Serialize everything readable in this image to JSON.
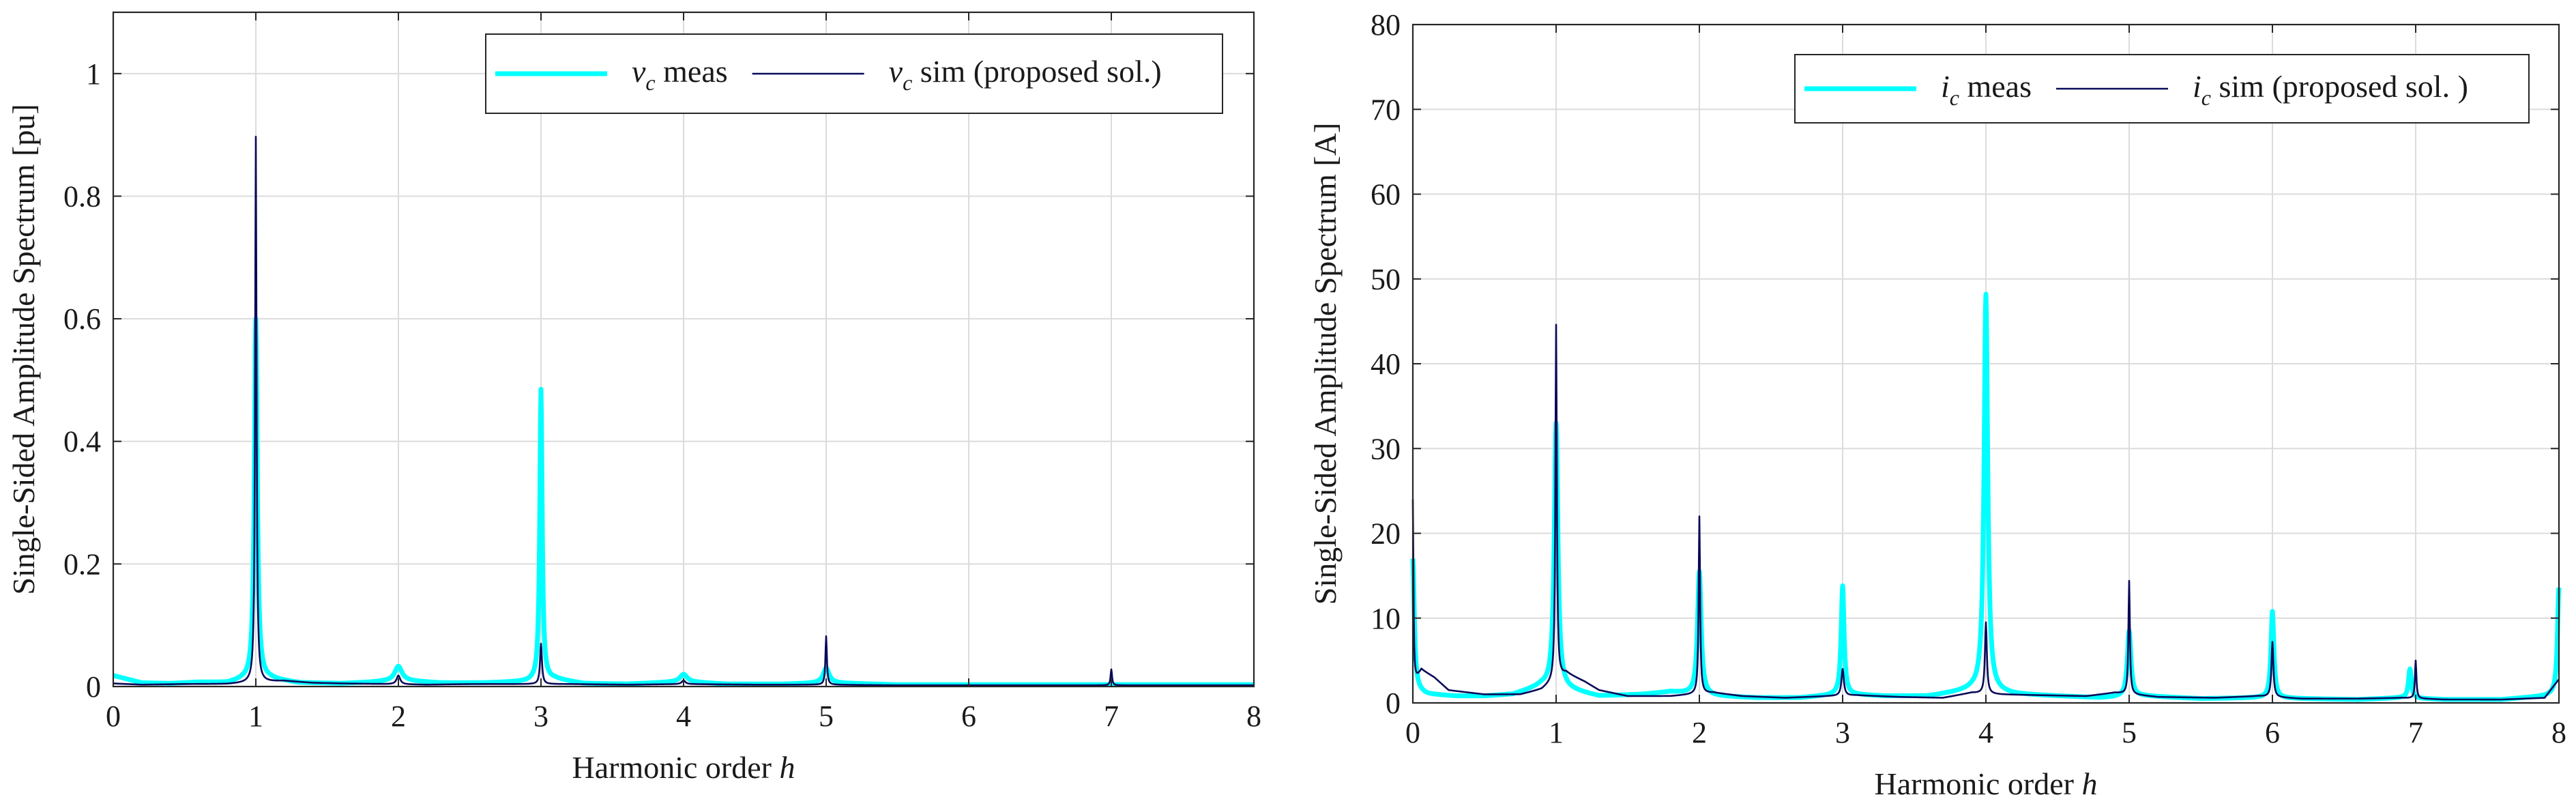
{
  "colors": {
    "meas": "#00FFFF",
    "sim": "#0A0A5A",
    "grid": "#DCDCDC",
    "axis": "#262626"
  },
  "chart_data": [
    {
      "type": "line",
      "title": "",
      "xlabel": "Harmonic order",
      "xlabel_var": "h",
      "ylabel": "Single-Sided Amplitude Spectrum [pu]",
      "xlim": [
        0,
        8
      ],
      "ylim": [
        0,
        1.1
      ],
      "xticks": [
        0,
        1,
        2,
        3,
        4,
        5,
        6,
        7,
        8
      ],
      "xtick_labels": [
        "0",
        "1",
        "2",
        "3",
        "4",
        "5",
        "6",
        "7",
        "8"
      ],
      "yticks": [
        0,
        0.2,
        0.4,
        0.6,
        0.8,
        1
      ],
      "ytick_labels": [
        "0",
        "0.2",
        "0.4",
        "0.6",
        "0.8",
        "1"
      ],
      "grid": true,
      "legend_position": "top-right",
      "legend": [
        {
          "var": "v",
          "sub": "c",
          "text": "meas",
          "series": "meas"
        },
        {
          "var": "v",
          "sub": "c",
          "text": "sim (proposed sol.)",
          "series": "sim"
        }
      ],
      "series": [
        {
          "name": "meas",
          "baseline": [
            [
              0,
              0.018
            ],
            [
              0.1,
              0.012
            ],
            [
              0.2,
              0.006
            ],
            [
              0.4,
              0.005
            ],
            [
              0.6,
              0.007
            ],
            [
              0.8,
              0.006
            ],
            [
              0.9,
              0.01
            ],
            [
              1.1,
              0.012
            ],
            [
              1.3,
              0.006
            ],
            [
              1.6,
              0.005
            ],
            [
              1.8,
              0.007
            ],
            [
              2.0,
              0.01
            ],
            [
              2.3,
              0.006
            ],
            [
              2.6,
              0.006
            ],
            [
              2.9,
              0.008
            ],
            [
              3.1,
              0.012
            ],
            [
              3.3,
              0.005
            ],
            [
              3.6,
              0.004
            ],
            [
              4.0,
              0.008
            ],
            [
              4.3,
              0.004
            ],
            [
              4.7,
              0.004
            ],
            [
              5.0,
              0.006
            ],
            [
              5.5,
              0.003
            ],
            [
              6.0,
              0.003
            ],
            [
              7.0,
              0.003
            ],
            [
              8.0,
              0.003
            ]
          ],
          "peaks": [
            {
              "h": 1.0,
              "value": 0.6,
              "width": 0.012
            },
            {
              "h": 2.0,
              "value": 0.033,
              "width": 0.03
            },
            {
              "h": 3.0,
              "value": 0.485,
              "width": 0.01
            },
            {
              "h": 4.0,
              "value": 0.02,
              "width": 0.03
            },
            {
              "h": 5.0,
              "value": 0.03,
              "width": 0.025
            }
          ]
        },
        {
          "name": "sim",
          "baseline": [
            [
              0,
              0.005
            ],
            [
              0.2,
              0.003
            ],
            [
              0.5,
              0.004
            ],
            [
              0.8,
              0.004
            ],
            [
              1.2,
              0.009
            ],
            [
              1.4,
              0.006
            ],
            [
              1.6,
              0.005
            ],
            [
              2.2,
              0.003
            ],
            [
              2.5,
              0.004
            ],
            [
              2.8,
              0.004
            ],
            [
              3.2,
              0.004
            ],
            [
              3.6,
              0.003
            ],
            [
              4.0,
              0.004
            ],
            [
              4.5,
              0.003
            ],
            [
              5.0,
              0.003
            ],
            [
              5.5,
              0.002
            ],
            [
              6.0,
              0.002
            ],
            [
              7.0,
              0.002
            ],
            [
              8.0,
              0.002
            ]
          ],
          "peaks": [
            {
              "h": 1.0,
              "value": 0.897,
              "width": 0.006
            },
            {
              "h": 2.0,
              "value": 0.018,
              "width": 0.015
            },
            {
              "h": 3.0,
              "value": 0.07,
              "width": 0.008
            },
            {
              "h": 4.0,
              "value": 0.01,
              "width": 0.015
            },
            {
              "h": 5.0,
              "value": 0.082,
              "width": 0.006
            },
            {
              "h": 7.0,
              "value": 0.028,
              "width": 0.006
            }
          ]
        }
      ]
    },
    {
      "type": "line",
      "title": "",
      "xlabel": "Harmonic order",
      "xlabel_var": "h",
      "ylabel": "Single-Sided Amplitude Spectrum [A]",
      "xlim": [
        0,
        8
      ],
      "ylim": [
        0,
        80
      ],
      "xticks": [
        0,
        1,
        2,
        3,
        4,
        5,
        6,
        7,
        8
      ],
      "xtick_labels": [
        "0",
        "1",
        "2",
        "3",
        "4",
        "5",
        "6",
        "7",
        "8"
      ],
      "yticks": [
        0,
        10,
        20,
        30,
        40,
        50,
        60,
        70,
        80
      ],
      "ytick_labels": [
        "0",
        "10",
        "20",
        "30",
        "40",
        "50",
        "60",
        "70",
        "80"
      ],
      "grid": true,
      "legend_position": "top-right",
      "legend": [
        {
          "var": "i",
          "sub": "c",
          "text": "meas",
          "series": "meas"
        },
        {
          "var": "i",
          "sub": "c",
          "text": "sim (proposed sol. )",
          "series": "sim"
        }
      ],
      "series": [
        {
          "name": "meas",
          "baseline": [
            [
              0,
              1.5
            ],
            [
              0.1,
              1.0
            ],
            [
              0.3,
              0.8
            ],
            [
              0.5,
              0.8
            ],
            [
              0.7,
              1.0
            ],
            [
              0.9,
              2.0
            ],
            [
              1.1,
              1.5
            ],
            [
              1.3,
              0.8
            ],
            [
              1.6,
              1.0
            ],
            [
              1.8,
              1.3
            ],
            [
              2.1,
              0.8
            ],
            [
              2.4,
              0.6
            ],
            [
              2.7,
              0.6
            ],
            [
              3.0,
              1.0
            ],
            [
              3.3,
              0.8
            ],
            [
              3.6,
              0.8
            ],
            [
              3.9,
              1.5
            ],
            [
              4.2,
              1.0
            ],
            [
              4.5,
              0.8
            ],
            [
              4.8,
              0.6
            ],
            [
              5.1,
              0.8
            ],
            [
              5.5,
              0.5
            ],
            [
              5.9,
              0.6
            ],
            [
              6.2,
              0.5
            ],
            [
              6.6,
              0.4
            ],
            [
              6.9,
              0.6
            ],
            [
              7.2,
              0.4
            ],
            [
              7.6,
              0.4
            ],
            [
              7.9,
              0.8
            ],
            [
              8.0,
              1.0
            ]
          ],
          "peaks": [
            {
              "h": 0.0,
              "value": 17.0,
              "width": 0.012
            },
            {
              "h": 1.0,
              "value": 33.0,
              "width": 0.015
            },
            {
              "h": 2.0,
              "value": 15.5,
              "width": 0.015
            },
            {
              "h": 3.0,
              "value": 13.8,
              "width": 0.012
            },
            {
              "h": 4.0,
              "value": 48.2,
              "width": 0.015
            },
            {
              "h": 5.0,
              "value": 8.5,
              "width": 0.015
            },
            {
              "h": 6.0,
              "value": 10.8,
              "width": 0.012
            },
            {
              "h": 6.96,
              "value": 4.0,
              "width": 0.012
            },
            {
              "h": 8.0,
              "value": 13.6,
              "width": 0.012
            }
          ]
        },
        {
          "name": "sim",
          "baseline": [
            [
              0,
              2.0
            ],
            [
              0.06,
              3.9
            ],
            [
              0.15,
              3.0
            ],
            [
              0.25,
              1.5
            ],
            [
              0.35,
              1.3
            ],
            [
              0.5,
              1.0
            ],
            [
              0.75,
              1.0
            ],
            [
              0.9,
              1.6
            ],
            [
              1.07,
              3.5
            ],
            [
              1.2,
              2.5
            ],
            [
              1.3,
              1.5
            ],
            [
              1.5,
              0.8
            ],
            [
              1.8,
              0.8
            ],
            [
              2.1,
              1.2
            ],
            [
              2.3,
              0.8
            ],
            [
              2.6,
              0.6
            ],
            [
              2.9,
              0.8
            ],
            [
              3.1,
              0.9
            ],
            [
              3.4,
              0.7
            ],
            [
              3.7,
              0.6
            ],
            [
              3.9,
              1.2
            ],
            [
              4.1,
              1.0
            ],
            [
              4.4,
              0.9
            ],
            [
              4.7,
              0.8
            ],
            [
              4.9,
              1.2
            ],
            [
              5.2,
              0.7
            ],
            [
              5.6,
              0.6
            ],
            [
              5.9,
              0.8
            ],
            [
              6.2,
              0.5
            ],
            [
              6.6,
              0.5
            ],
            [
              6.9,
              0.6
            ],
            [
              7.2,
              0.4
            ],
            [
              7.6,
              0.4
            ],
            [
              7.9,
              0.6
            ],
            [
              8.0,
              2.8
            ]
          ],
          "peaks": [
            {
              "h": 0.0,
              "value": 24.0,
              "width": 0.005
            },
            {
              "h": 1.0,
              "value": 44.6,
              "width": 0.006
            },
            {
              "h": 2.0,
              "value": 22.0,
              "width": 0.006
            },
            {
              "h": 3.0,
              "value": 4.0,
              "width": 0.01
            },
            {
              "h": 4.0,
              "value": 9.5,
              "width": 0.008
            },
            {
              "h": 5.0,
              "value": 14.4,
              "width": 0.006
            },
            {
              "h": 6.0,
              "value": 7.2,
              "width": 0.008
            },
            {
              "h": 7.0,
              "value": 5.0,
              "width": 0.006
            }
          ]
        }
      ]
    }
  ]
}
